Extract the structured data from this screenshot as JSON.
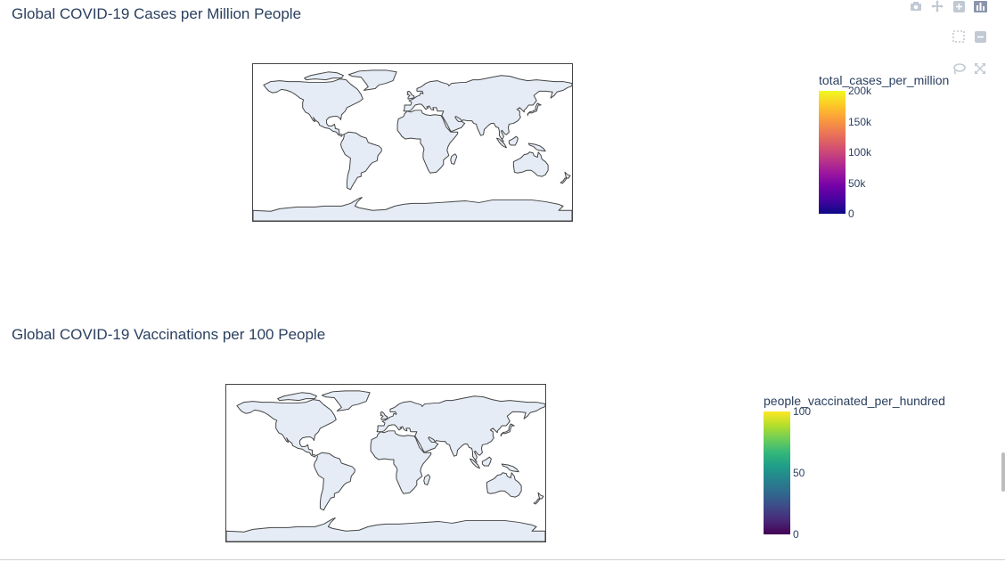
{
  "chart_data": [
    {
      "type": "choropleth",
      "title": "Global COVID-19 Cases per Million People",
      "projection": "equirectangular",
      "land_color": "#e5ecf6",
      "coastline_color": "#444444",
      "colorbar": {
        "title": "total_cases_per_million",
        "range": [
          0,
          200000
        ],
        "tick_labels": [
          "0",
          "50k",
          "100k",
          "150k",
          "200k"
        ],
        "tick_values": [
          0,
          50000,
          100000,
          150000,
          200000
        ],
        "colorscale": [
          "#0d0887",
          "#46039f",
          "#7201a8",
          "#9c179e",
          "#bd3786",
          "#d8576b",
          "#ed7953",
          "#fb9f3a",
          "#fdca26",
          "#f0f921"
        ]
      }
    },
    {
      "type": "choropleth",
      "title": "Global COVID-19 Vaccinations per 100 People",
      "projection": "equirectangular",
      "land_color": "#e5ecf6",
      "coastline_color": "#444444",
      "colorbar": {
        "title": "people_vaccinated_per_hundred",
        "range": [
          0,
          100
        ],
        "tick_labels": [
          "0",
          "50",
          "100"
        ],
        "tick_values": [
          0,
          50,
          100
        ],
        "colorscale": [
          "#440154",
          "#482878",
          "#3e4989",
          "#31688e",
          "#26828e",
          "#1f9e89",
          "#35b779",
          "#6ece58",
          "#b5de2b",
          "#fde725"
        ]
      }
    }
  ],
  "modebar": {
    "icons": [
      "camera-icon",
      "pan-icon",
      "zoom-in-icon",
      "plotly-logo-icon",
      "box-select-icon",
      "zoom-out-icon",
      "lasso-icon",
      "reset-icon"
    ]
  }
}
